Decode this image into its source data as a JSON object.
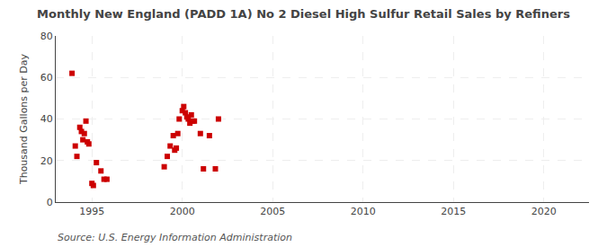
{
  "chart_data": {
    "type": "scatter",
    "title": "Monthly New England (PADD 1A) No 2 Diesel High Sulfur Retail Sales by Refiners",
    "ylabel": "Thousand Gallons per Day",
    "annotations": [
      "Source: U.S. Energy Information Administration"
    ],
    "x": [
      1993.9,
      1994.08,
      1994.17,
      1994.33,
      1994.42,
      1994.5,
      1994.58,
      1994.67,
      1994.75,
      1994.83,
      1995.0,
      1995.08,
      1995.25,
      1995.5,
      1995.67,
      1995.83,
      1999.0,
      1999.17,
      1999.33,
      1999.5,
      1999.58,
      1999.67,
      1999.75,
      1999.83,
      2000.0,
      2000.08,
      2000.17,
      2000.25,
      2000.33,
      2000.42,
      2000.5,
      2000.58,
      2000.67,
      2001.0,
      2001.17,
      2001.5,
      2001.83,
      2002.0
    ],
    "values": [
      62,
      27,
      22,
      36,
      34,
      30,
      33,
      39,
      29,
      28,
      9,
      8,
      19,
      15,
      11,
      11,
      17,
      22,
      27,
      32,
      25,
      26,
      33,
      40,
      44,
      46,
      43,
      41,
      40,
      38,
      42,
      39,
      39,
      33,
      16,
      32,
      16,
      40
    ],
    "color": "#cc0000",
    "marker": "square",
    "xlim": [
      1993.0,
      2022.5
    ],
    "xticks": [
      1995,
      2000,
      2005,
      2010,
      2015,
      2020
    ],
    "ylim": [
      0,
      80
    ],
    "yticks": [
      0,
      20,
      40,
      60,
      80
    ],
    "grid": true
  }
}
